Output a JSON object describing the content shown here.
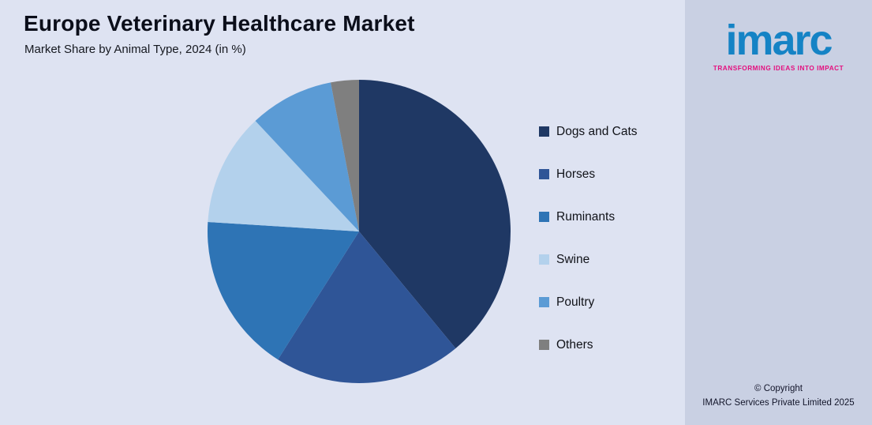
{
  "logo": {
    "brand": "imarc",
    "tagline": "TRANSFORMING IDEAS INTO IMPACT"
  },
  "footer": {
    "copyright_line1": "© Copyright",
    "copyright_line2": "IMARC Services Private Limited 2025"
  },
  "theme": {
    "background": "#dee3f2",
    "panel": "#c9d0e3",
    "brand_blue": "#1583c5",
    "brand_magenta": "#e40e7e",
    "text": "#0b0e1a"
  },
  "chart_data": {
    "type": "pie",
    "title": "Europe Veterinary Healthcare Market",
    "subtitle": "Market Share by Animal Type, 2024 (in %)",
    "categories": [
      "Dogs and Cats",
      "Horses",
      "Ruminants",
      "Swine",
      "Poultry",
      "Others"
    ],
    "values": [
      39,
      20,
      17,
      12,
      9,
      3
    ],
    "unit": "%",
    "colors": [
      "#1f3864",
      "#2f5597",
      "#2e74b5",
      "#b3d1ec",
      "#5b9bd5",
      "#7f7f7f"
    ],
    "start_angle_deg": 0,
    "direction": "clockwise",
    "legend_position": "right",
    "data_labels": false
  }
}
